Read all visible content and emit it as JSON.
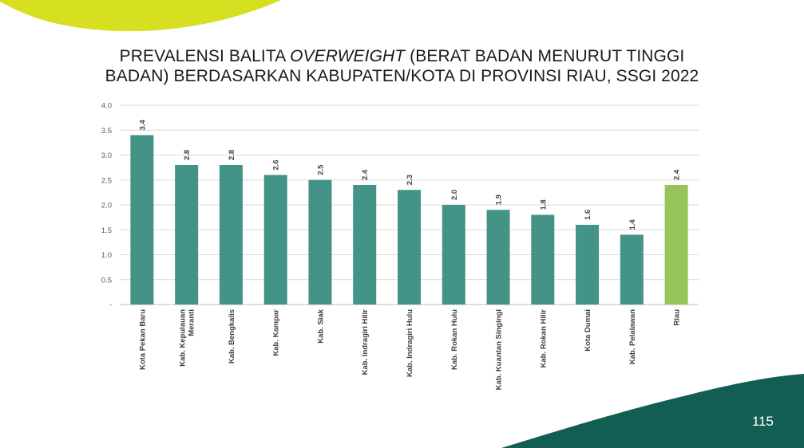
{
  "slide": {
    "title": {
      "part1": "PREVALENSI BALITA ",
      "italic": "OVERWEIGHT",
      "part2": " (BERAT BADAN MENURUT TINGGI",
      "line2": "BADAN) BERDASARKAN KABUPATEN/KOTA DI PROVINSI RIAU, SSGI 2022"
    },
    "page_number": "115",
    "colors": {
      "top_blob": "#d6e021",
      "bottom_band": "#135e52",
      "bar": "#439386",
      "highlight_bar": "#96c35a"
    }
  },
  "chart_data": {
    "type": "bar",
    "title": "PREVALENSI BALITA OVERWEIGHT (BERAT BADAN MENURUT TINGGI BADAN) BERDASARKAN KABUPATEN/KOTA DI PROVINSI RIAU, SSGI 2022",
    "categories": [
      [
        "Kota Pekan Baru"
      ],
      [
        "Kab. Kepulauan",
        "Meranti"
      ],
      [
        "Kab. Bengkalis"
      ],
      [
        "Kab. Kampar"
      ],
      [
        "Kab. Siak"
      ],
      [
        "Kab. Indragiri Hilir"
      ],
      [
        "Kab. Indragiri Hulu"
      ],
      [
        "Kab. Rokan Hulu"
      ],
      [
        "Kab. Kuantan Singingi"
      ],
      [
        "Kab. Rokan Hilir"
      ],
      [
        "Kota Dumai"
      ],
      [
        "Kab. Pelalawan"
      ],
      [
        "Riau"
      ]
    ],
    "values": [
      3.4,
      2.8,
      2.8,
      2.6,
      2.5,
      2.4,
      2.3,
      2.0,
      1.9,
      1.8,
      1.6,
      1.4,
      2.4
    ],
    "value_labels": [
      "3.4",
      "2.8",
      "2.8",
      "2.6",
      "2.5",
      "2.4",
      "2.3",
      "2.0",
      "1.9",
      "1.8",
      "1.6",
      "1.4",
      "2.4"
    ],
    "highlight_index": 12,
    "ylim": [
      0,
      4.0
    ],
    "yticks": [
      0,
      0.5,
      1.0,
      1.5,
      2.0,
      2.5,
      3.0,
      3.5,
      4.0
    ],
    "ytick_labels": [
      "-",
      "0.5",
      "1.0",
      "1.5",
      "2.0",
      "2.5",
      "3.0",
      "3.5",
      "4.0"
    ],
    "grid": true,
    "legend": "none",
    "xlabel": "",
    "ylabel": ""
  }
}
